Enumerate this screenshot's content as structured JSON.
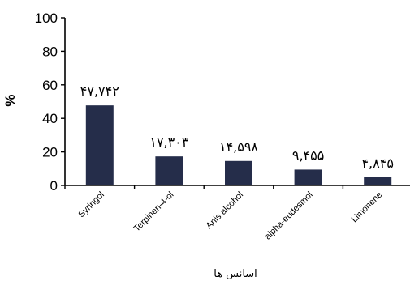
{
  "chart_data": {
    "type": "bar",
    "categories": [
      "Syringol",
      "Terpinen-4-ol",
      "Anis alcohol",
      "alpha-eudesmol",
      "Limonene"
    ],
    "values": [
      47.742,
      17.303,
      14.598,
      9.455,
      4.845
    ],
    "data_labels": [
      "۴۷,۷۴۲",
      "۱۷,۳۰۳",
      "۱۴,۵۹۸",
      "۹,۴۵۵",
      "۴,۸۴۵"
    ],
    "ylim": [
      0,
      100
    ],
    "yticks": [
      0,
      20,
      40,
      60,
      80,
      100
    ],
    "ytick_labels": [
      "0",
      "20",
      "40",
      "60",
      "80",
      "100"
    ],
    "ylabel": "%",
    "xlabel": "اسانس ها",
    "grid": false,
    "bar_color": "#252d4a"
  }
}
